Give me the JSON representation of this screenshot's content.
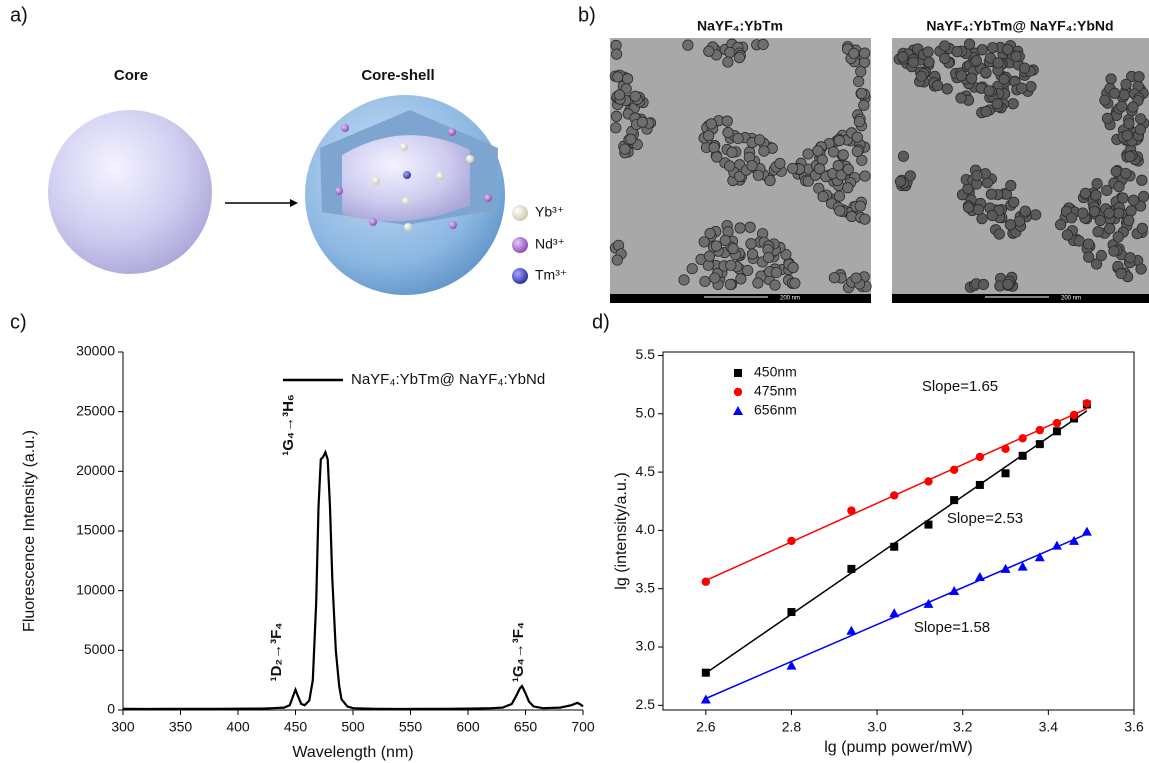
{
  "panel_labels": [
    "a)",
    "b)",
    "c)",
    "d)"
  ],
  "panel_a": {
    "core_label": "Core",
    "coreshell_label": "Core-shell",
    "legend": [
      "Yb³⁺",
      "Nd³⁺",
      "Tm³⁺"
    ]
  },
  "panel_b": {
    "titles": [
      "NaYF₄:YbTm",
      "NaYF₄:YbTm@ NaYF₄:YbNd"
    ],
    "scale_bar": "200 nm"
  },
  "chart_data": [
    {
      "type": "line",
      "x_label": "Wavelength (nm)",
      "y_label": "Fluorescence Intensity (a.u.)",
      "x": [
        300,
        320,
        340,
        360,
        380,
        400,
        420,
        430,
        440,
        445,
        448,
        450,
        452,
        455,
        458,
        462,
        465,
        468,
        470,
        472,
        474,
        476,
        478,
        480,
        482,
        485,
        488,
        490,
        495,
        500,
        520,
        540,
        560,
        580,
        600,
        620,
        630,
        638,
        642,
        645,
        647,
        650,
        653,
        657,
        665,
        680,
        690,
        695,
        698,
        700
      ],
      "series": [
        {
          "name": "NaYF₄:YbTm@ NaYF₄:YbNd",
          "color": "#000000",
          "values": [
            100,
            80,
            100,
            90,
            100,
            110,
            120,
            150,
            200,
            400,
            1200,
            1700,
            1200,
            500,
            400,
            800,
            2500,
            9000,
            17000,
            21000,
            21200,
            21600,
            21000,
            17000,
            11000,
            5000,
            2000,
            900,
            300,
            150,
            100,
            80,
            90,
            100,
            120,
            150,
            200,
            500,
            1200,
            1800,
            2000,
            1400,
            700,
            300,
            150,
            200,
            400,
            600,
            450,
            300
          ]
        }
      ],
      "xlim": [
        300,
        700
      ],
      "xticks": [
        300,
        350,
        400,
        450,
        500,
        550,
        600,
        650,
        700
      ],
      "ylim": [
        0,
        30000
      ],
      "yticks": [
        0,
        5000,
        10000,
        15000,
        20000,
        25000,
        30000
      ],
      "annotations": [
        "¹G₄→³H₆",
        "¹D₂→³F₄",
        "¹G₄→³F₄"
      ],
      "legend": "top-right"
    },
    {
      "type": "scatter",
      "x_label": "lg (pump power/mW)",
      "y_label": "lg (intensity/a.u.)",
      "x": [
        2.6,
        2.8,
        2.94,
        3.04,
        3.12,
        3.18,
        3.24,
        3.3,
        3.34,
        3.38,
        3.42,
        3.46,
        3.49
      ],
      "series": [
        {
          "name": "450nm",
          "color": "#000000",
          "marker": "square",
          "values": [
            2.78,
            3.3,
            3.67,
            3.86,
            4.05,
            4.26,
            4.39,
            4.49,
            4.64,
            4.74,
            4.85,
            4.96,
            5.08
          ]
        },
        {
          "name": "475nm",
          "color": "#ff0000",
          "marker": "circle",
          "values": [
            3.56,
            3.91,
            4.17,
            4.3,
            4.42,
            4.52,
            4.63,
            4.7,
            4.79,
            4.86,
            4.92,
            4.99,
            5.09
          ]
        },
        {
          "name": "656nm",
          "color": "#0000ff",
          "marker": "triangle",
          "values": [
            2.55,
            2.84,
            3.14,
            3.29,
            3.37,
            3.48,
            3.6,
            3.67,
            3.69,
            3.77,
            3.87,
            3.91,
            3.99
          ]
        }
      ],
      "xlim": [
        2.5,
        3.6
      ],
      "xticks": [
        {
          "value": 2.6,
          "label": "2.6"
        },
        {
          "value": 2.8,
          "label": "2.8"
        },
        {
          "value": 3,
          "label": "3.0"
        },
        {
          "value": 3.2,
          "label": "3.2"
        },
        {
          "value": 3.4,
          "label": "3.4"
        },
        {
          "value": 3.6,
          "label": "3.6"
        }
      ],
      "ylim": [
        2.46,
        5.53
      ],
      "yticks": [
        2.5,
        {
          "value": 3,
          "label": "3.0"
        },
        3.5,
        {
          "value": 4,
          "label": "4.0"
        },
        4.5,
        {
          "value": 5,
          "label": "5.0"
        },
        5.5
      ],
      "annotations": [
        "Slope=1.65",
        "Slope=2.53",
        "Slope=1.58"
      ],
      "fit_lines": true,
      "legend": "top-left"
    }
  ]
}
